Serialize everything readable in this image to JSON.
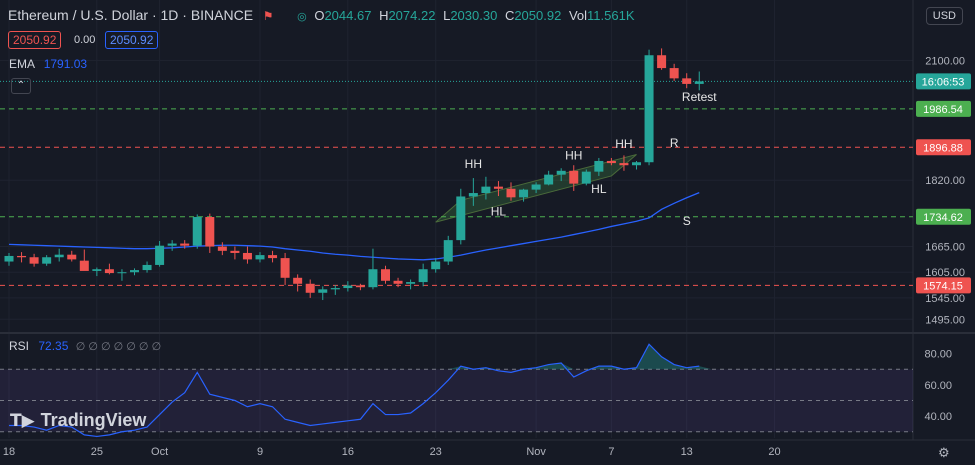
{
  "header": {
    "symbol": "Ethereum / U.S. Dollar · 1D · BINANCE",
    "open_lbl": "O",
    "open": "2044.67",
    "high_lbl": "H",
    "high": "2074.22",
    "low_lbl": "L",
    "low": "2030.30",
    "close_lbl": "C",
    "close": "2050.92",
    "vol_lbl": "Vol",
    "vol": "11.561K",
    "sell_price": "2050.92",
    "spread": "0.00",
    "buy_price": "2050.92",
    "ema_label": "EMA",
    "ema_value": "1791.03",
    "rsi_label": "RSI",
    "rsi_value": "72.35",
    "rsi_na": "∅ ∅ ∅ ∅ ∅ ∅ ∅",
    "currency": "USD",
    "logo": "TradingView"
  },
  "colors": {
    "background": "#161a25",
    "up": "#26a69a",
    "down": "#ef5350",
    "ema": "#2962ff",
    "rsi": "#2962ff",
    "support_line": "#4caf50",
    "resistance_line": "#ef5350"
  },
  "chart_data": {
    "type": "candlestick",
    "price_axis": [
      "2100.00",
      "1820.00",
      "1665.00",
      "1605.00",
      "1545.00",
      "1495.00"
    ],
    "price_ylim": [
      1470,
      2185
    ],
    "date_ticks": [
      {
        "label": "18",
        "i": 0
      },
      {
        "label": "25",
        "i": 7
      },
      {
        "label": "Oct",
        "i": 12
      },
      {
        "label": "9",
        "i": 20
      },
      {
        "label": "16",
        "i": 27
      },
      {
        "label": "23",
        "i": 34
      },
      {
        "label": "Nov",
        "i": 42
      },
      {
        "label": "7",
        "i": 48
      },
      {
        "label": "13",
        "i": 54
      },
      {
        "label": "20",
        "i": 61
      }
    ],
    "candles": [
      [
        1630,
        1650,
        1620,
        1643
      ],
      [
        1643,
        1652,
        1628,
        1640
      ],
      [
        1640,
        1648,
        1618,
        1625
      ],
      [
        1625,
        1645,
        1620,
        1640
      ],
      [
        1640,
        1660,
        1630,
        1646
      ],
      [
        1646,
        1655,
        1630,
        1635
      ],
      [
        1632,
        1658,
        1612,
        1608
      ],
      [
        1608,
        1616,
        1596,
        1612
      ],
      [
        1612,
        1625,
        1600,
        1603
      ],
      [
        1603,
        1612,
        1585,
        1605
      ],
      [
        1605,
        1614,
        1598,
        1610
      ],
      [
        1610,
        1630,
        1604,
        1622
      ],
      [
        1622,
        1678,
        1618,
        1667
      ],
      [
        1667,
        1680,
        1655,
        1672
      ],
      [
        1672,
        1680,
        1660,
        1667
      ],
      [
        1667,
        1740,
        1660,
        1734
      ],
      [
        1734,
        1742,
        1650,
        1665
      ],
      [
        1665,
        1675,
        1645,
        1655
      ],
      [
        1655,
        1665,
        1635,
        1650
      ],
      [
        1650,
        1665,
        1625,
        1635
      ],
      [
        1635,
        1652,
        1628,
        1645
      ],
      [
        1645,
        1655,
        1628,
        1638
      ],
      [
        1638,
        1650,
        1575,
        1592
      ],
      [
        1592,
        1600,
        1560,
        1578
      ],
      [
        1578,
        1588,
        1545,
        1557
      ],
      [
        1557,
        1572,
        1540,
        1565
      ],
      [
        1565,
        1575,
        1552,
        1568
      ],
      [
        1568,
        1584,
        1560,
        1574
      ],
      [
        1574,
        1578,
        1563,
        1570
      ],
      [
        1570,
        1660,
        1565,
        1612
      ],
      [
        1612,
        1620,
        1578,
        1585
      ],
      [
        1585,
        1592,
        1570,
        1578
      ],
      [
        1578,
        1588,
        1565,
        1582
      ],
      [
        1582,
        1625,
        1572,
        1612
      ],
      [
        1612,
        1638,
        1604,
        1630
      ],
      [
        1630,
        1690,
        1622,
        1680
      ],
      [
        1680,
        1800,
        1670,
        1782
      ],
      [
        1782,
        1825,
        1760,
        1790
      ],
      [
        1790,
        1828,
        1775,
        1805
      ],
      [
        1805,
        1818,
        1783,
        1800
      ],
      [
        1800,
        1815,
        1772,
        1780
      ],
      [
        1780,
        1800,
        1770,
        1798
      ],
      [
        1798,
        1815,
        1790,
        1810
      ],
      [
        1810,
        1842,
        1808,
        1833
      ],
      [
        1833,
        1848,
        1818,
        1842
      ],
      [
        1842,
        1855,
        1795,
        1812
      ],
      [
        1812,
        1845,
        1808,
        1840
      ],
      [
        1840,
        1872,
        1830,
        1865
      ],
      [
        1865,
        1872,
        1855,
        1860
      ],
      [
        1860,
        1878,
        1842,
        1855
      ],
      [
        1855,
        1865,
        1845,
        1862
      ],
      [
        1862,
        2125,
        1855,
        2112
      ],
      [
        2112,
        2128,
        2078,
        2082
      ],
      [
        2082,
        2092,
        2052,
        2058
      ],
      [
        2058,
        2070,
        2035,
        2045
      ],
      [
        2045,
        2074,
        2030,
        2051
      ]
    ],
    "ema": [
      1670,
      1669,
      1668,
      1667,
      1666,
      1665,
      1664,
      1663,
      1662,
      1661,
      1660,
      1660,
      1661,
      1662,
      1664,
      1666,
      1667,
      1668,
      1668,
      1667,
      1666,
      1664,
      1660,
      1657,
      1654,
      1650,
      1647,
      1645,
      1642,
      1640,
      1638,
      1636,
      1635,
      1634,
      1636,
      1640,
      1645,
      1651,
      1657,
      1662,
      1667,
      1672,
      1677,
      1682,
      1687,
      1693,
      1699,
      1705,
      1712,
      1718,
      1724,
      1732,
      1752,
      1766,
      1779,
      1791
    ],
    "hlines": [
      {
        "price": 1986.54,
        "label": "1986.54",
        "kind": "support"
      },
      {
        "price": 1896.88,
        "label": "1896.88",
        "kind": "resistance"
      },
      {
        "price": 1734.62,
        "label": "1734.62",
        "kind": "support"
      },
      {
        "price": 1574.15,
        "label": "1574.15",
        "kind": "resistance"
      }
    ],
    "time_label": "16:06:53",
    "annotations": [
      {
        "text": "HH",
        "i": 37,
        "p": 1848
      },
      {
        "text": "HL",
        "i": 39,
        "p": 1738
      },
      {
        "text": "HH",
        "i": 45,
        "p": 1868
      },
      {
        "text": "HL",
        "i": 47,
        "p": 1790
      },
      {
        "text": "HH",
        "i": 49,
        "p": 1895
      },
      {
        "text": "R",
        "i": 53,
        "p": 1898
      },
      {
        "text": "Retest",
        "i": 55,
        "p": 2005
      },
      {
        "text": "S",
        "i": 54,
        "p": 1715
      }
    ],
    "channel": [
      [
        34,
        1722
      ],
      [
        48,
        1830
      ],
      [
        50,
        1880
      ],
      [
        36,
        1773
      ]
    ],
    "rsi_axis": [
      "80.00",
      "60.00",
      "40.00"
    ],
    "rsi_ylim": [
      26,
      90
    ],
    "rsi_levels": [
      70,
      50,
      30
    ],
    "rsi": [
      34,
      34,
      33,
      31,
      34,
      33,
      28,
      27,
      28,
      30,
      31,
      33,
      41,
      49,
      55,
      68,
      54,
      52,
      50,
      46,
      48,
      46,
      38,
      36,
      34,
      35,
      36,
      37,
      38,
      48,
      41,
      41,
      42,
      48,
      55,
      63,
      72,
      70,
      71,
      69,
      68,
      70,
      71,
      73,
      74,
      65,
      69,
      72,
      72,
      70,
      71,
      86,
      78,
      73,
      71,
      72
    ]
  }
}
